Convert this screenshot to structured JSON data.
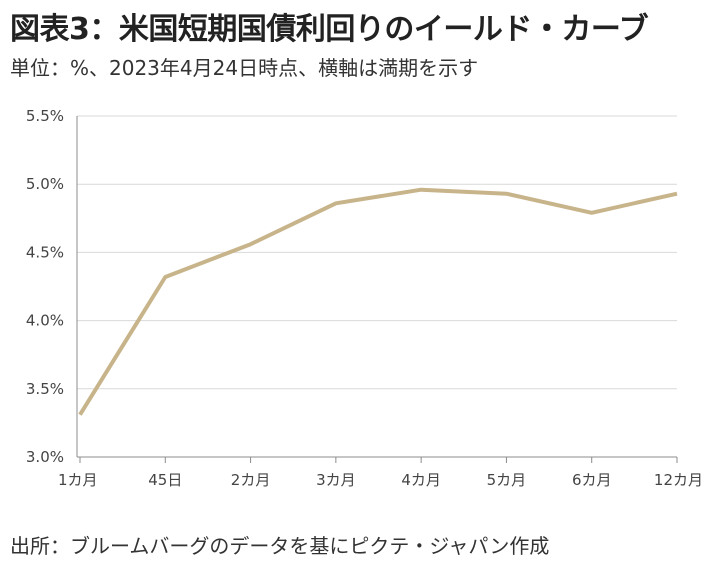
{
  "title": "図表3：米国短期国債利回りのイールド・カーブ",
  "subtitle": "単位：%、2023年4月24日時点、横軸は満期を示す",
  "source": "出所：ブルームバーグのデータを基にピクテ・ジャパン作成",
  "chart_data": {
    "type": "line",
    "categories": [
      "1カ月",
      "45日",
      "2カ月",
      "3カ月",
      "4カ月",
      "5カ月",
      "6カ月",
      "12カ月"
    ],
    "series": [
      {
        "values": [
          3.31,
          4.32,
          4.56,
          4.86,
          4.96,
          4.93,
          4.79,
          4.93
        ]
      }
    ],
    "ylim": [
      3.0,
      5.5
    ],
    "yticks": [
      3.0,
      3.5,
      4.0,
      4.5,
      5.0,
      5.5
    ],
    "ytick_labels": [
      "3.0%",
      "3.5%",
      "4.0%",
      "4.5%",
      "5.0%",
      "5.5%"
    ],
    "grid": true,
    "colors": {
      "line": "#c8b48a",
      "grid": "#d9d9d9",
      "axis": "#8c8c8c"
    }
  }
}
